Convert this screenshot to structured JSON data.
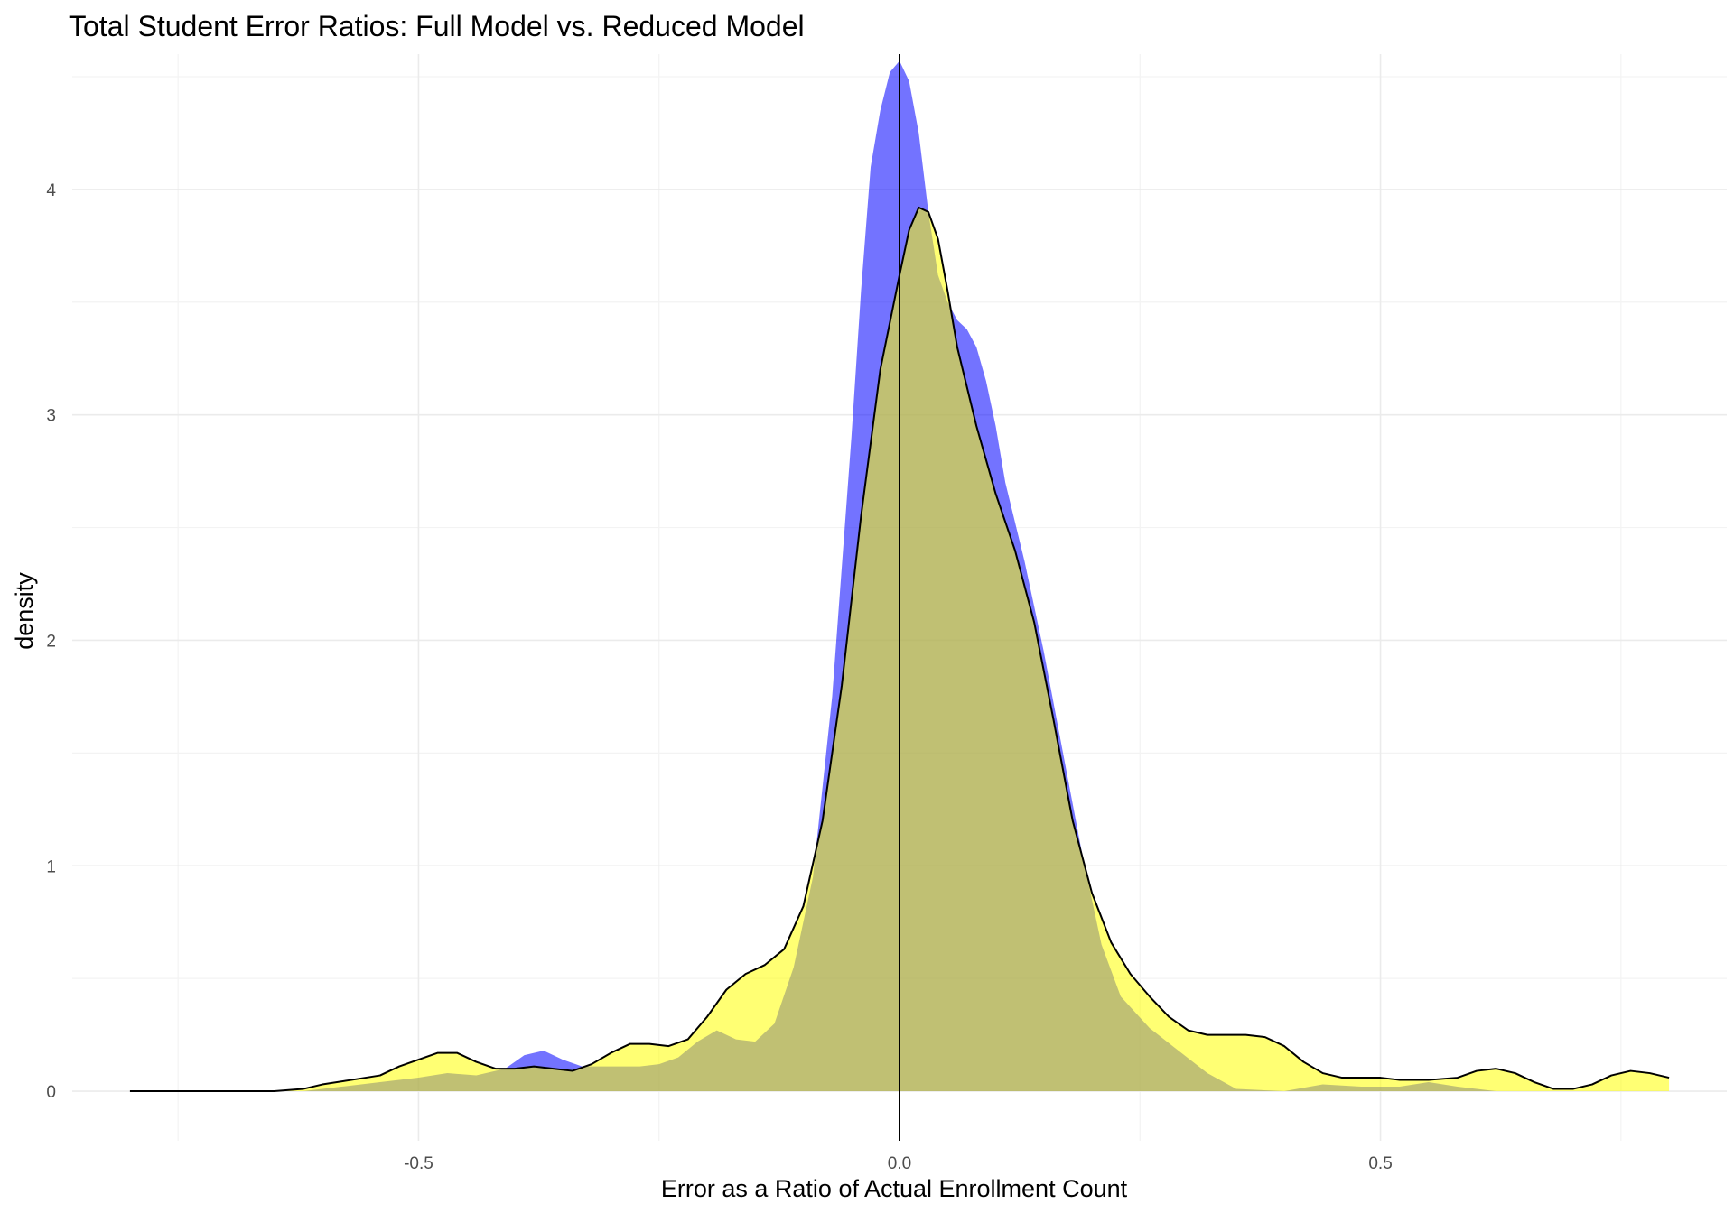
{
  "chart_data": {
    "type": "area",
    "title": "Total Student Error Ratios: Full Model vs. Reduced Model",
    "xlabel": "Error as a Ratio of Actual Enrollment Count",
    "ylabel": "density",
    "xlim": [
      -0.86,
      0.86
    ],
    "ylim": [
      -0.22,
      4.6
    ],
    "x_ticks": [
      -0.5,
      0.0,
      0.5
    ],
    "x_tick_labels": [
      "-0.5",
      "0.0",
      "0.5"
    ],
    "y_ticks": [
      0,
      1,
      2,
      3,
      4
    ],
    "y_tick_labels": [
      "0",
      "1",
      "2",
      "3",
      "4"
    ],
    "x_minor_ticks": [
      -0.75,
      -0.25,
      0.25,
      0.75
    ],
    "y_minor_ticks": [
      0.5,
      1.5,
      2.5,
      3.5,
      4.5
    ],
    "grid": true,
    "legend": "none",
    "vline_x": 0.0,
    "series": [
      {
        "color": "#0000ff",
        "opacity": 0.55,
        "outline": false,
        "points": [
          [
            -0.62,
            0.0
          ],
          [
            -0.58,
            0.02
          ],
          [
            -0.54,
            0.04
          ],
          [
            -0.5,
            0.06
          ],
          [
            -0.47,
            0.08
          ],
          [
            -0.44,
            0.07
          ],
          [
            -0.41,
            0.1
          ],
          [
            -0.39,
            0.16
          ],
          [
            -0.37,
            0.18
          ],
          [
            -0.35,
            0.14
          ],
          [
            -0.33,
            0.11
          ],
          [
            -0.3,
            0.11
          ],
          [
            -0.27,
            0.11
          ],
          [
            -0.25,
            0.12
          ],
          [
            -0.23,
            0.15
          ],
          [
            -0.21,
            0.22
          ],
          [
            -0.19,
            0.27
          ],
          [
            -0.17,
            0.23
          ],
          [
            -0.15,
            0.22
          ],
          [
            -0.13,
            0.3
          ],
          [
            -0.11,
            0.55
          ],
          [
            -0.09,
            0.95
          ],
          [
            -0.07,
            1.75
          ],
          [
            -0.05,
            2.9
          ],
          [
            -0.04,
            3.55
          ],
          [
            -0.03,
            4.1
          ],
          [
            -0.02,
            4.35
          ],
          [
            -0.01,
            4.52
          ],
          [
            0.0,
            4.57
          ],
          [
            0.01,
            4.48
          ],
          [
            0.02,
            4.25
          ],
          [
            0.03,
            3.9
          ],
          [
            0.04,
            3.62
          ],
          [
            0.05,
            3.5
          ],
          [
            0.06,
            3.42
          ],
          [
            0.07,
            3.38
          ],
          [
            0.08,
            3.3
          ],
          [
            0.09,
            3.15
          ],
          [
            0.1,
            2.95
          ],
          [
            0.11,
            2.7
          ],
          [
            0.13,
            2.35
          ],
          [
            0.15,
            1.95
          ],
          [
            0.17,
            1.5
          ],
          [
            0.19,
            1.05
          ],
          [
            0.21,
            0.65
          ],
          [
            0.23,
            0.42
          ],
          [
            0.26,
            0.28
          ],
          [
            0.29,
            0.18
          ],
          [
            0.32,
            0.08
          ],
          [
            0.35,
            0.01
          ],
          [
            0.4,
            0.0
          ],
          [
            0.44,
            0.03
          ],
          [
            0.48,
            0.02
          ],
          [
            0.52,
            0.02
          ],
          [
            0.55,
            0.04
          ],
          [
            0.58,
            0.02
          ],
          [
            0.62,
            0.0
          ],
          [
            0.8,
            0.0
          ]
        ]
      },
      {
        "color": "#ffff00",
        "opacity": 0.55,
        "outline": true,
        "points": [
          [
            -0.8,
            0.0
          ],
          [
            -0.7,
            0.0
          ],
          [
            -0.65,
            0.0
          ],
          [
            -0.62,
            0.01
          ],
          [
            -0.6,
            0.03
          ],
          [
            -0.57,
            0.05
          ],
          [
            -0.54,
            0.07
          ],
          [
            -0.52,
            0.11
          ],
          [
            -0.5,
            0.14
          ],
          [
            -0.48,
            0.17
          ],
          [
            -0.46,
            0.17
          ],
          [
            -0.44,
            0.13
          ],
          [
            -0.42,
            0.1
          ],
          [
            -0.4,
            0.1
          ],
          [
            -0.38,
            0.11
          ],
          [
            -0.36,
            0.1
          ],
          [
            -0.34,
            0.09
          ],
          [
            -0.32,
            0.12
          ],
          [
            -0.3,
            0.17
          ],
          [
            -0.28,
            0.21
          ],
          [
            -0.26,
            0.21
          ],
          [
            -0.24,
            0.2
          ],
          [
            -0.22,
            0.23
          ],
          [
            -0.2,
            0.33
          ],
          [
            -0.18,
            0.45
          ],
          [
            -0.16,
            0.52
          ],
          [
            -0.14,
            0.56
          ],
          [
            -0.12,
            0.63
          ],
          [
            -0.1,
            0.82
          ],
          [
            -0.08,
            1.2
          ],
          [
            -0.06,
            1.8
          ],
          [
            -0.04,
            2.55
          ],
          [
            -0.02,
            3.2
          ],
          [
            0.0,
            3.62
          ],
          [
            0.01,
            3.82
          ],
          [
            0.02,
            3.92
          ],
          [
            0.03,
            3.9
          ],
          [
            0.04,
            3.78
          ],
          [
            0.05,
            3.55
          ],
          [
            0.06,
            3.3
          ],
          [
            0.08,
            2.95
          ],
          [
            0.1,
            2.65
          ],
          [
            0.12,
            2.4
          ],
          [
            0.14,
            2.08
          ],
          [
            0.16,
            1.65
          ],
          [
            0.18,
            1.2
          ],
          [
            0.2,
            0.88
          ],
          [
            0.22,
            0.66
          ],
          [
            0.24,
            0.52
          ],
          [
            0.26,
            0.42
          ],
          [
            0.28,
            0.33
          ],
          [
            0.3,
            0.27
          ],
          [
            0.32,
            0.25
          ],
          [
            0.34,
            0.25
          ],
          [
            0.36,
            0.25
          ],
          [
            0.38,
            0.24
          ],
          [
            0.4,
            0.2
          ],
          [
            0.42,
            0.13
          ],
          [
            0.44,
            0.08
          ],
          [
            0.46,
            0.06
          ],
          [
            0.48,
            0.06
          ],
          [
            0.5,
            0.06
          ],
          [
            0.52,
            0.05
          ],
          [
            0.55,
            0.05
          ],
          [
            0.58,
            0.06
          ],
          [
            0.6,
            0.09
          ],
          [
            0.62,
            0.1
          ],
          [
            0.64,
            0.08
          ],
          [
            0.66,
            0.04
          ],
          [
            0.68,
            0.01
          ],
          [
            0.7,
            0.01
          ],
          [
            0.72,
            0.03
          ],
          [
            0.74,
            0.07
          ],
          [
            0.76,
            0.09
          ],
          [
            0.78,
            0.08
          ],
          [
            0.8,
            0.06
          ]
        ]
      }
    ]
  }
}
